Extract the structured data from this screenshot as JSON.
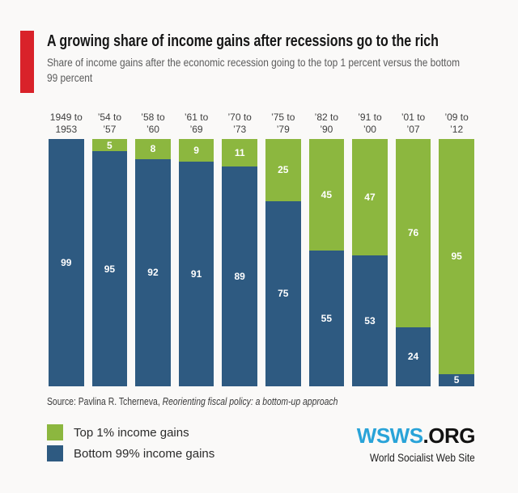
{
  "header": {
    "title": "A growing share of income gains after recessions go to the rich",
    "subtitle": "Share of income gains after the economic recession going to the top 1 percent versus the bottom 99 percent"
  },
  "chart_data": {
    "type": "bar",
    "stacked": true,
    "orientation": "vertical",
    "unit": "percent of income gains",
    "ylim": [
      0,
      100
    ],
    "grid": false,
    "value_labels": "inside segments, white bold",
    "categories": [
      "1949 to 1953",
      "’54 to ’57",
      "’58 to ’60",
      "’61 to ’69",
      "’70 to ’73",
      "’75 to ’79",
      "’82 to ’90",
      "’91 to ’00",
      "’01 to ’07",
      "’09 to ’12"
    ],
    "category_lines": [
      [
        "1949 to",
        "1953"
      ],
      [
        "’54 to",
        "’57"
      ],
      [
        "’58 to",
        "’60"
      ],
      [
        "’61 to",
        "’69"
      ],
      [
        "’70 to",
        "’73"
      ],
      [
        "’75 to",
        "’79"
      ],
      [
        "’82 to",
        "’90"
      ],
      [
        "’91 to",
        "’00"
      ],
      [
        "’01 to",
        "’07"
      ],
      [
        "’09 to",
        "’12"
      ]
    ],
    "series": [
      {
        "name": "Top 1% income gains",
        "color": "#8cb73f",
        "values": [
          null,
          5,
          8,
          9,
          11,
          25,
          45,
          47,
          76,
          95
        ]
      },
      {
        "name": "Bottom 99% income gains",
        "color": "#2e5a81",
        "values": [
          99,
          95,
          92,
          91,
          89,
          75,
          55,
          53,
          24,
          5
        ]
      }
    ]
  },
  "source": {
    "prefix": "Source: Pavlina R. Tcherneva, ",
    "citation": "Reorienting fiscal policy: a bottom-up approach"
  },
  "legend": {
    "items": [
      {
        "label": "Top 1% income gains",
        "color": "#8cb73f"
      },
      {
        "label": "Bottom 99% income gains",
        "color": "#2e5a81"
      }
    ]
  },
  "branding": {
    "logo_primary": "WSWS",
    "logo_suffix": ".ORG",
    "logo_primary_color": "#29a3d8",
    "logo_suffix_color": "#121212",
    "tagline": "World Socialist Web Site"
  },
  "colors": {
    "background": "#faf9f8",
    "accent_red": "#d9222a",
    "top1_green": "#8cb73f",
    "bottom99_blue": "#2e5a81"
  }
}
